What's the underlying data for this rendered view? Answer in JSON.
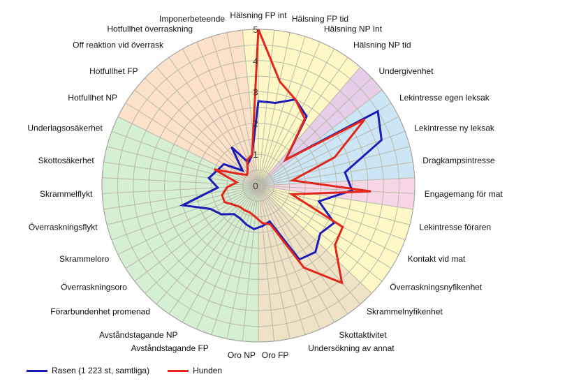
{
  "chart_data": {
    "type": "radar",
    "title": "",
    "range": [
      0,
      5
    ],
    "ticks": [
      "0",
      "1",
      "2",
      "3",
      "4",
      "5"
    ],
    "grid": true,
    "legend_position": "bottom-left",
    "categories": [
      "Hälsning FP int",
      "Hälsning FP tid",
      "Hälsning NP Int",
      "Hälsning NP tid",
      "Undergivenhet",
      "Lekintresse egen leksak",
      "Lekintresse ny leksak",
      "Dragkampsintresse",
      "Engagemang för mat",
      "Lekintresse föraren",
      "Kontakt vid mat",
      "Överraskningsnyfikenhet",
      "Skrammelnyfikenhet",
      "Skottaktivitet",
      "Undersökning av annat",
      "Oro FP",
      "Oro NP",
      "Avståndstagande FP",
      "Avståndstagande NP",
      "Förarbundenhet promenad",
      "Överraskningsoro",
      "Skrammeloro",
      "Överraskningsflykt",
      "Skrammelflykt",
      "Skottosäkerhet",
      "Underlagsosäkerhet",
      "Hotfullhet NP",
      "Hotfullhet FP",
      "Off reaktion vid överrask",
      "Hotfullhet överraskning",
      "Imponerbeteende"
    ],
    "sector_colors": [
      "#fdf8c6",
      "#fdf8c6",
      "#fdf8c6",
      "#fdf8c6",
      "#e6cde9",
      "#cde6f6",
      "#cde6f6",
      "#cde6f6",
      "#f6d6e6",
      "#fdf8c6",
      "#fdf8c6",
      "#fdf8c6",
      "#efe2c6",
      "#efe2c6",
      "#efe2c6",
      "#efe2c6",
      "#d5efd2",
      "#d5efd2",
      "#d5efd2",
      "#d5efd2",
      "#d5efd2",
      "#d5efd2",
      "#d5efd2",
      "#d5efd2",
      "#d5efd2",
      "#d5efd2",
      "#fbe1ca",
      "#fbe1ca",
      "#fbe1ca",
      "#fbe1ca",
      "#fbe1ca"
    ],
    "series": [
      {
        "name": "Rasen (1 223 st, samtliga)",
        "color": "#1c1cb8",
        "values": [
          2.7,
          2.7,
          3.0,
          2.7,
          1.2,
          4.5,
          4.2,
          2.8,
          3.0,
          2.0,
          2.7,
          2.5,
          2.8,
          2.7,
          1.2,
          1.3,
          1.4,
          1.3,
          1.2,
          1.2,
          1.5,
          1.7,
          2.5,
          1.3,
          1.6,
          1.4,
          1.3,
          0.7,
          1.5,
          0.8,
          1.0
        ]
      },
      {
        "name": "Hunden",
        "color": "#e2261c",
        "values": [
          5.0,
          3.4,
          3.0,
          2.6,
          1.2,
          4.0,
          2.6,
          1.1,
          3.6,
          1.1,
          3.0,
          3.1,
          4.1,
          3.0,
          1.3,
          1.2,
          1.0,
          0.9,
          0.9,
          0.9,
          1.0,
          1.2,
          1.2,
          1.0,
          0.7,
          1.5,
          0.7,
          0.5,
          0.6,
          0.9,
          1.0
        ]
      }
    ]
  }
}
